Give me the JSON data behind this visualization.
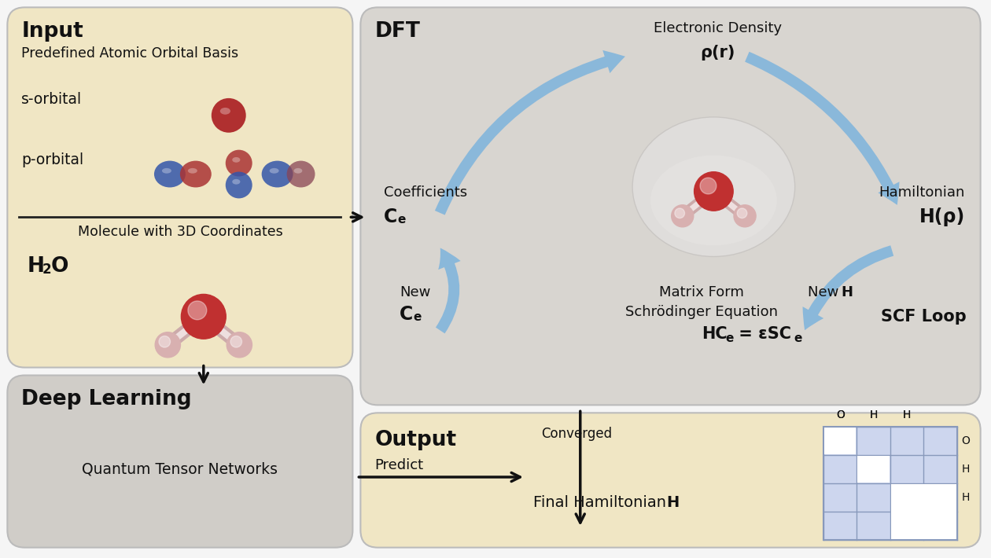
{
  "bg_color": "#f5f5f5",
  "input_box_color": "#f0e6c4",
  "dft_box_color": "#d8d5d0",
  "deep_box_color": "#d0cdc8",
  "output_box_color": "#f0e6c4",
  "arrow_blue": "#7aaed4",
  "arrow_black": "#111111",
  "text_color": "#111111",
  "input_title": "Input",
  "input_sub1": "Predefined Atomic Orbital Basis",
  "input_s_label": "s-orbital",
  "input_p_label": "p-orbital",
  "input_mol_label": "Molecule with 3D Coordinates",
  "input_h2o_label": "H",
  "dft_title": "DFT",
  "dft_elec_density": "Electronic Density",
  "dft_rho": "ρ(r)",
  "dft_coeff": "Coefficients",
  "dft_Ce": "C",
  "dft_hamiltonian": "Hamiltonian",
  "dft_Hrho": "H(ρ)",
  "dft_new": "New",
  "dft_new_Ce": "C",
  "dft_new_H": "New ",
  "dft_new_H2": "H",
  "dft_matrix": "Matrix Form",
  "dft_schrodinger": "Schrödinger Equation",
  "dft_equation": "HC",
  "dft_equation2": " = εSC",
  "dft_scf": "SCF Loop",
  "dl_title": "Deep Learning",
  "dl_sub": "Quantum Tensor Networks",
  "output_title": "Output",
  "output_predict": "Predict",
  "output_final": "Final Hamiltonian ",
  "output_final2": "H",
  "output_converged": "Converged"
}
